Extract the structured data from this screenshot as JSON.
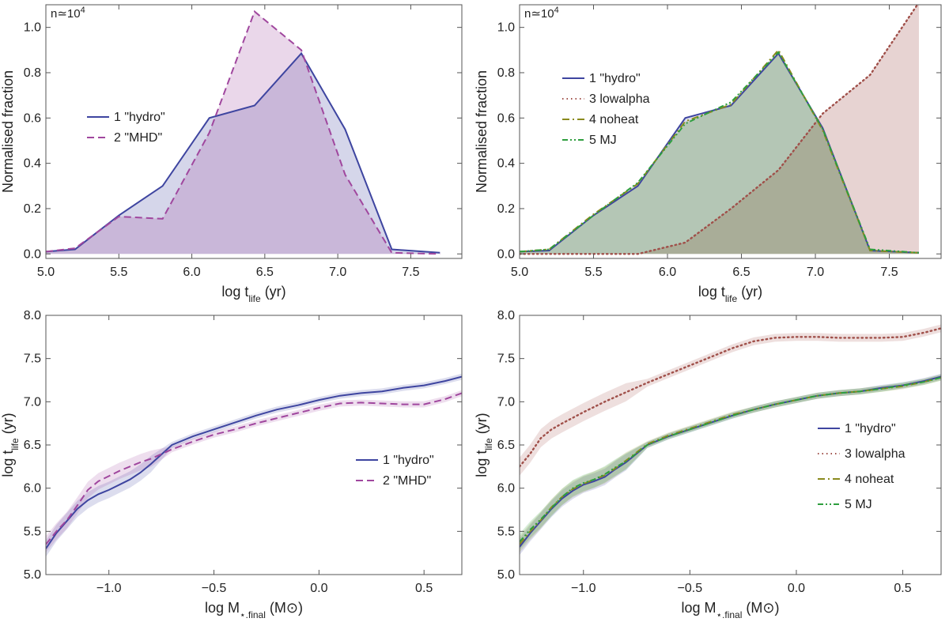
{
  "colors": {
    "hydro": "#3e45a0",
    "mhd": "#a0479e",
    "lowalpha": "#a0504a",
    "noheat": "#8a8a1e",
    "mj": "#2e9e3e",
    "hydro_fill": "#c8c9e4",
    "mhd_fill": "#e2c4e0",
    "overlap_fill": "#b4a4d0",
    "lowalpha_fill": "#ead2d0",
    "green_fill": "#a9c2ab"
  },
  "chart_data": [
    {
      "type": "area",
      "annotation": "n≃10⁴",
      "xlabel": "log t_life (yr)",
      "ylabel": "Normalised fraction",
      "xlim": [
        5.0,
        7.85
      ],
      "ylim": [
        -0.02,
        1.1
      ],
      "xticks": [
        5.0,
        5.5,
        6.0,
        6.5,
        7.0,
        7.5
      ],
      "yticks": [
        0.0,
        0.2,
        0.4,
        0.6,
        0.8,
        1.0
      ],
      "legend_position": "center-left",
      "series": [
        {
          "name": "1 \"hydro\"",
          "key": "hydro",
          "style": "solid",
          "x": [
            5.0,
            5.2,
            5.5,
            5.8,
            6.12,
            6.43,
            6.75,
            7.05,
            7.37,
            7.7
          ],
          "y": [
            0.01,
            0.02,
            0.17,
            0.3,
            0.6,
            0.655,
            0.885,
            0.55,
            0.02,
            0.005
          ]
        },
        {
          "name": "2 \"MHD\"",
          "key": "mhd",
          "style": "dashed",
          "x": [
            5.0,
            5.2,
            5.5,
            5.8,
            6.12,
            6.43,
            6.75,
            7.05,
            7.37,
            7.7
          ],
          "y": [
            0.01,
            0.025,
            0.165,
            0.155,
            0.535,
            1.07,
            0.9,
            0.35,
            0.005,
            0.0
          ]
        }
      ]
    },
    {
      "type": "area",
      "annotation": "n≃10⁴",
      "xlabel": "log t_life (yr)",
      "ylabel": "Normalised fraction",
      "xlim": [
        5.0,
        7.85
      ],
      "ylim": [
        -0.02,
        1.1
      ],
      "xticks": [
        5.0,
        5.5,
        6.0,
        6.5,
        7.0,
        7.5
      ],
      "yticks": [
        0.0,
        0.2,
        0.4,
        0.6,
        0.8,
        1.0
      ],
      "legend_position": "center-left",
      "series": [
        {
          "name": "1 \"hydro\"",
          "key": "hydro",
          "style": "solid",
          "x": [
            5.0,
            5.2,
            5.5,
            5.8,
            6.12,
            6.43,
            6.75,
            7.05,
            7.37,
            7.7
          ],
          "y": [
            0.01,
            0.015,
            0.17,
            0.3,
            0.6,
            0.655,
            0.885,
            0.555,
            0.015,
            0.005
          ]
        },
        {
          "name": "3 lowalpha",
          "key": "lowalpha",
          "style": "dotted",
          "x": [
            5.0,
            5.2,
            5.5,
            5.8,
            6.12,
            6.43,
            6.75,
            7.05,
            7.37,
            7.7
          ],
          "y": [
            0.0,
            0.0,
            0.0,
            0.0,
            0.05,
            0.2,
            0.37,
            0.62,
            0.79,
            1.11
          ]
        },
        {
          "name": "4 noheat",
          "key": "noheat",
          "style": "dashdot",
          "x": [
            5.0,
            5.2,
            5.5,
            5.8,
            6.12,
            6.43,
            6.75,
            7.05,
            7.37,
            7.7
          ],
          "y": [
            0.01,
            0.02,
            0.175,
            0.31,
            0.585,
            0.66,
            0.9,
            0.545,
            0.015,
            0.005
          ]
        },
        {
          "name": "5 MJ",
          "key": "mj",
          "style": "dashdotdot",
          "x": [
            5.0,
            5.2,
            5.5,
            5.8,
            6.12,
            6.43,
            6.75,
            7.05,
            7.37,
            7.7
          ],
          "y": [
            0.01,
            0.02,
            0.17,
            0.315,
            0.575,
            0.67,
            0.89,
            0.55,
            0.02,
            0.005
          ]
        }
      ]
    },
    {
      "type": "line",
      "xlabel": "log M⋆,final (M⊙)",
      "ylabel": "log t_life (yr)",
      "xlim": [
        -1.3,
        0.68
      ],
      "ylim": [
        5.0,
        8.0
      ],
      "xticks": [
        -1.0,
        -0.5,
        0.0,
        0.5
      ],
      "yticks": [
        5.0,
        5.5,
        6.0,
        6.5,
        7.0,
        7.5,
        8.0
      ],
      "legend_position": "center-right",
      "series": [
        {
          "name": "1 \"hydro\"",
          "key": "hydro",
          "style": "solid",
          "x": [
            -1.3,
            -1.25,
            -1.2,
            -1.15,
            -1.1,
            -1.05,
            -1.0,
            -0.95,
            -0.9,
            -0.85,
            -0.8,
            -0.7,
            -0.6,
            -0.5,
            -0.4,
            -0.3,
            -0.2,
            -0.1,
            0.0,
            0.1,
            0.2,
            0.3,
            0.4,
            0.5,
            0.6,
            0.68
          ],
          "y": [
            5.3,
            5.48,
            5.62,
            5.76,
            5.86,
            5.93,
            5.98,
            6.04,
            6.1,
            6.18,
            6.28,
            6.5,
            6.6,
            6.68,
            6.76,
            6.84,
            6.91,
            6.96,
            7.02,
            7.07,
            7.1,
            7.12,
            7.16,
            7.19,
            7.24,
            7.29
          ]
        },
        {
          "name": "2 \"MHD\"",
          "key": "mhd",
          "style": "dashed",
          "x": [
            -1.3,
            -1.25,
            -1.2,
            -1.15,
            -1.1,
            -1.05,
            -1.0,
            -0.95,
            -0.9,
            -0.85,
            -0.8,
            -0.7,
            -0.6,
            -0.5,
            -0.4,
            -0.3,
            -0.2,
            -0.1,
            0.0,
            0.1,
            0.2,
            0.3,
            0.4,
            0.5,
            0.6,
            0.68
          ],
          "y": [
            5.35,
            5.5,
            5.63,
            5.8,
            5.98,
            6.08,
            6.14,
            6.2,
            6.25,
            6.3,
            6.34,
            6.45,
            6.54,
            6.62,
            6.68,
            6.75,
            6.81,
            6.87,
            6.93,
            6.98,
            6.99,
            6.98,
            6.97,
            6.97,
            7.03,
            7.1
          ]
        }
      ]
    },
    {
      "type": "line",
      "xlabel": "log M⋆,final (M⊙)",
      "ylabel": "log t_life (yr)",
      "xlim": [
        -1.3,
        0.68
      ],
      "ylim": [
        5.0,
        8.0
      ],
      "xticks": [
        -1.0,
        -0.5,
        0.0,
        0.5
      ],
      "yticks": [
        5.0,
        5.5,
        6.0,
        6.5,
        7.0,
        7.5,
        8.0
      ],
      "legend_position": "center-right",
      "series": [
        {
          "name": "1 \"hydro\"",
          "key": "hydro",
          "style": "solid",
          "x": [
            -1.3,
            -1.25,
            -1.2,
            -1.15,
            -1.1,
            -1.05,
            -1.0,
            -0.95,
            -0.9,
            -0.85,
            -0.8,
            -0.7,
            -0.6,
            -0.5,
            -0.4,
            -0.3,
            -0.2,
            -0.1,
            0.0,
            0.1,
            0.2,
            0.3,
            0.4,
            0.5,
            0.6,
            0.68
          ],
          "y": [
            5.32,
            5.48,
            5.62,
            5.76,
            5.88,
            5.97,
            6.04,
            6.08,
            6.13,
            6.22,
            6.3,
            6.5,
            6.6,
            6.68,
            6.76,
            6.84,
            6.91,
            6.97,
            7.02,
            7.07,
            7.1,
            7.12,
            7.16,
            7.19,
            7.24,
            7.29
          ]
        },
        {
          "name": "3 lowalpha",
          "key": "lowalpha",
          "style": "dotted",
          "x": [
            -1.3,
            -1.25,
            -1.2,
            -1.15,
            -1.1,
            -1.0,
            -0.9,
            -0.8,
            -0.7,
            -0.6,
            -0.5,
            -0.4,
            -0.3,
            -0.2,
            -0.1,
            0.0,
            0.1,
            0.2,
            0.3,
            0.4,
            0.5,
            0.6,
            0.68
          ],
          "y": [
            6.25,
            6.4,
            6.58,
            6.68,
            6.75,
            6.88,
            7.0,
            7.11,
            7.22,
            7.32,
            7.42,
            7.52,
            7.62,
            7.7,
            7.74,
            7.75,
            7.75,
            7.74,
            7.74,
            7.74,
            7.75,
            7.8,
            7.85
          ]
        },
        {
          "name": "4 noheat",
          "key": "noheat",
          "style": "dashdot",
          "x": [
            -1.3,
            -1.25,
            -1.2,
            -1.15,
            -1.1,
            -1.05,
            -1.0,
            -0.95,
            -0.9,
            -0.85,
            -0.8,
            -0.7,
            -0.6,
            -0.5,
            -0.4,
            -0.3,
            -0.2,
            -0.1,
            0.0,
            0.1,
            0.2,
            0.3,
            0.4,
            0.5,
            0.6,
            0.68
          ],
          "y": [
            5.35,
            5.5,
            5.63,
            5.78,
            5.9,
            5.99,
            6.05,
            6.1,
            6.15,
            6.23,
            6.32,
            6.51,
            6.61,
            6.69,
            6.77,
            6.85,
            6.91,
            6.97,
            7.02,
            7.07,
            7.1,
            7.12,
            7.15,
            7.18,
            7.23,
            7.28
          ]
        },
        {
          "name": "5 MJ",
          "key": "mj",
          "style": "dashdotdot",
          "x": [
            -1.3,
            -1.25,
            -1.2,
            -1.15,
            -1.1,
            -1.05,
            -1.0,
            -0.95,
            -0.9,
            -0.85,
            -0.8,
            -0.7,
            -0.6,
            -0.5,
            -0.4,
            -0.3,
            -0.2,
            -0.1,
            0.0,
            0.1,
            0.2,
            0.3,
            0.4,
            0.5,
            0.6,
            0.68
          ],
          "y": [
            5.38,
            5.52,
            5.64,
            5.77,
            5.9,
            6.0,
            6.06,
            6.1,
            6.16,
            6.24,
            6.31,
            6.5,
            6.6,
            6.68,
            6.76,
            6.84,
            6.91,
            6.97,
            7.02,
            7.07,
            7.1,
            7.12,
            7.15,
            7.19,
            7.23,
            7.28
          ]
        }
      ]
    }
  ]
}
